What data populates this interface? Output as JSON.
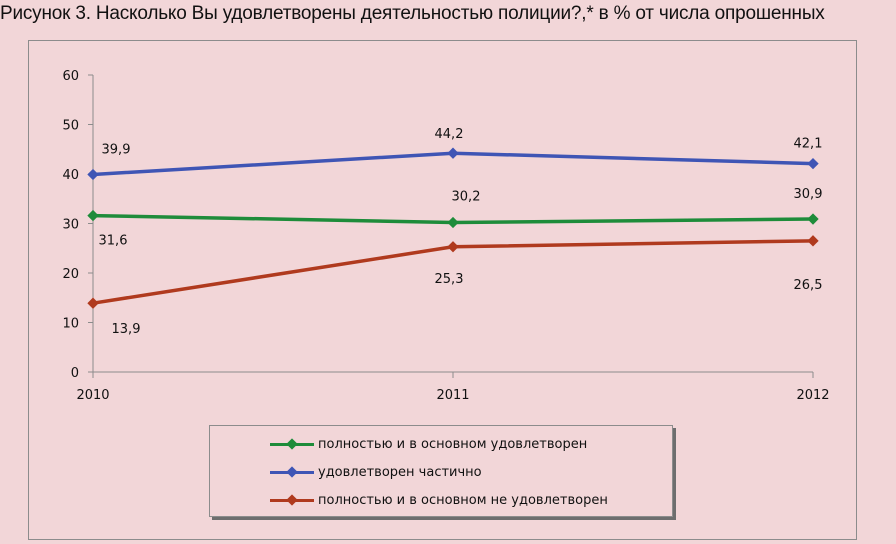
{
  "title": "Рисунок 3. Насколько Вы удовлетворены деятельностью полиции?,* в % от числа опрошенных",
  "chart_data": {
    "type": "line",
    "categories": [
      "2010",
      "2011",
      "2012"
    ],
    "ylim": [
      0,
      60
    ],
    "yticks": [
      "0",
      "10",
      "20",
      "30",
      "40",
      "50",
      "60"
    ],
    "grid": false,
    "legend_position": "bottom",
    "series": [
      {
        "name": "полностью и в основном удовлетворен",
        "values": [
          31.6,
          30.2,
          30.9
        ],
        "labels": [
          "31,6",
          "30,2",
          "30,9"
        ],
        "color": "#1e8c3a"
      },
      {
        "name": "удовлетворен частично",
        "values": [
          39.9,
          44.2,
          42.1
        ],
        "labels": [
          "39,9",
          "44,2",
          "42,1"
        ],
        "color": "#3f55b5"
      },
      {
        "name": "полностью и в основном не удовлетворен",
        "values": [
          13.9,
          25.3,
          26.5
        ],
        "labels": [
          "13,9",
          "25,3",
          "26,5"
        ],
        "color": "#b03a1e"
      }
    ]
  }
}
